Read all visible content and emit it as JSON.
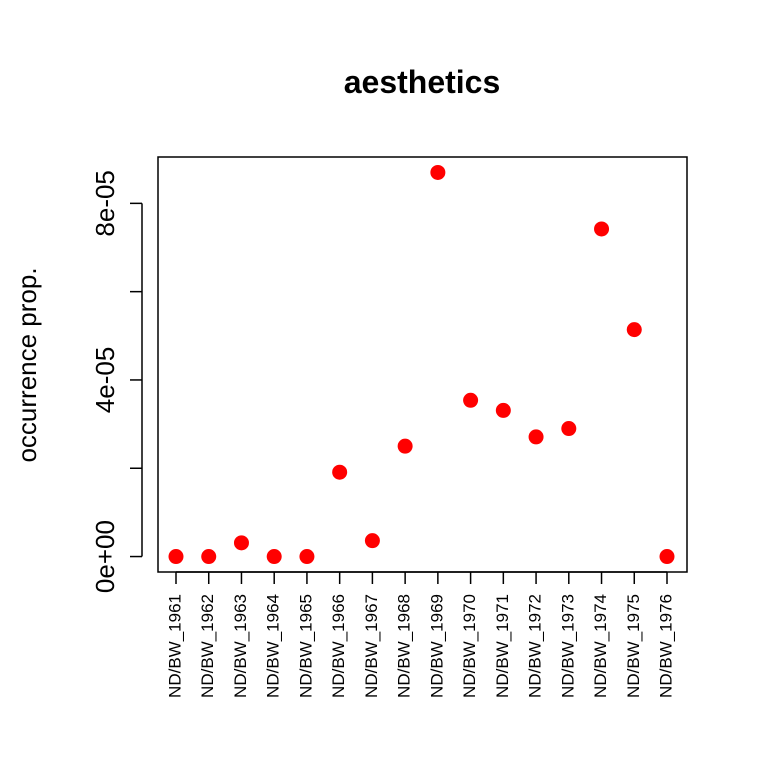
{
  "chart_data": {
    "type": "scatter",
    "title": "aesthetics",
    "xlabel": "",
    "ylabel": "occurrence prop.",
    "categories": [
      "ND/BW_1961",
      "ND/BW_1962",
      "ND/BW_1963",
      "ND/BW_1964",
      "ND/BW_1965",
      "ND/BW_1966",
      "ND/BW_1967",
      "ND/BW_1968",
      "ND/BW_1969",
      "ND/BW_1970",
      "ND/BW_1971",
      "ND/BW_1972",
      "ND/BW_1973",
      "ND/BW_1974",
      "ND/BW_1975",
      "ND/BW_1976"
    ],
    "series": [
      {
        "values": [
          0,
          0,
          3.1e-06,
          0,
          0,
          1.91e-05,
          3.6e-06,
          2.5e-05,
          8.7e-05,
          3.54e-05,
          3.31e-05,
          2.71e-05,
          2.9e-05,
          7.42e-05,
          5.14e-05,
          0
        ]
      }
    ],
    "ylim": [
      -3.5e-06,
      9.05e-05
    ],
    "yticks": [
      0,
      2e-05,
      4e-05,
      6e-05,
      8e-05
    ],
    "ytick_labels": [
      "0e+00",
      "",
      "4e-05",
      "",
      "8e-05"
    ],
    "marker_color": "#ff0000",
    "grid": false,
    "legend": "none"
  }
}
